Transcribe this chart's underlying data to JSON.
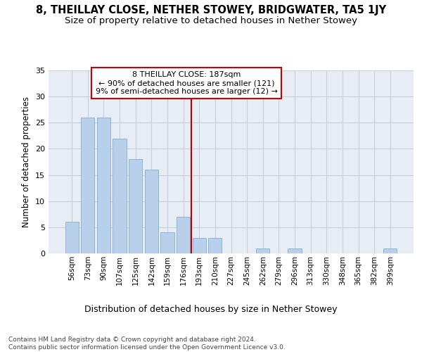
{
  "title": "8, THEILLAY CLOSE, NETHER STOWEY, BRIDGWATER, TA5 1JY",
  "subtitle": "Size of property relative to detached houses in Nether Stowey",
  "xlabel": "Distribution of detached houses by size in Nether Stowey",
  "ylabel": "Number of detached properties",
  "categories": [
    "56sqm",
    "73sqm",
    "90sqm",
    "107sqm",
    "125sqm",
    "142sqm",
    "159sqm",
    "176sqm",
    "193sqm",
    "210sqm",
    "227sqm",
    "245sqm",
    "262sqm",
    "279sqm",
    "296sqm",
    "313sqm",
    "330sqm",
    "348sqm",
    "365sqm",
    "382sqm",
    "399sqm"
  ],
  "values": [
    6,
    26,
    26,
    22,
    18,
    16,
    4,
    7,
    3,
    3,
    0,
    0,
    1,
    0,
    1,
    0,
    0,
    0,
    0,
    0,
    1
  ],
  "bar_color": "#b8d0ea",
  "bar_edge_color": "#8ab4d8",
  "vline_pos": 7.5,
  "vline_color": "#bb0000",
  "ann_line1": "8 THEILLAY CLOSE: 187sqm",
  "ann_line2": "← 90% of detached houses are smaller (121)",
  "ann_line3": "9% of semi-detached houses are larger (12) →",
  "ann_box_edge": "#cc0000",
  "ylim": [
    0,
    35
  ],
  "yticks": [
    0,
    5,
    10,
    15,
    20,
    25,
    30,
    35
  ],
  "grid_color": "#c8d0e0",
  "bg_color": "#e8ecf4",
  "footer": "Contains HM Land Registry data © Crown copyright and database right 2024.\nContains public sector information licensed under the Open Government Licence v3.0.",
  "title_fontsize": 10.5,
  "subtitle_fontsize": 9.5,
  "xlabel_fontsize": 9,
  "ylabel_fontsize": 8.5,
  "tick_fontsize": 7.5,
  "footer_fontsize": 6.5
}
